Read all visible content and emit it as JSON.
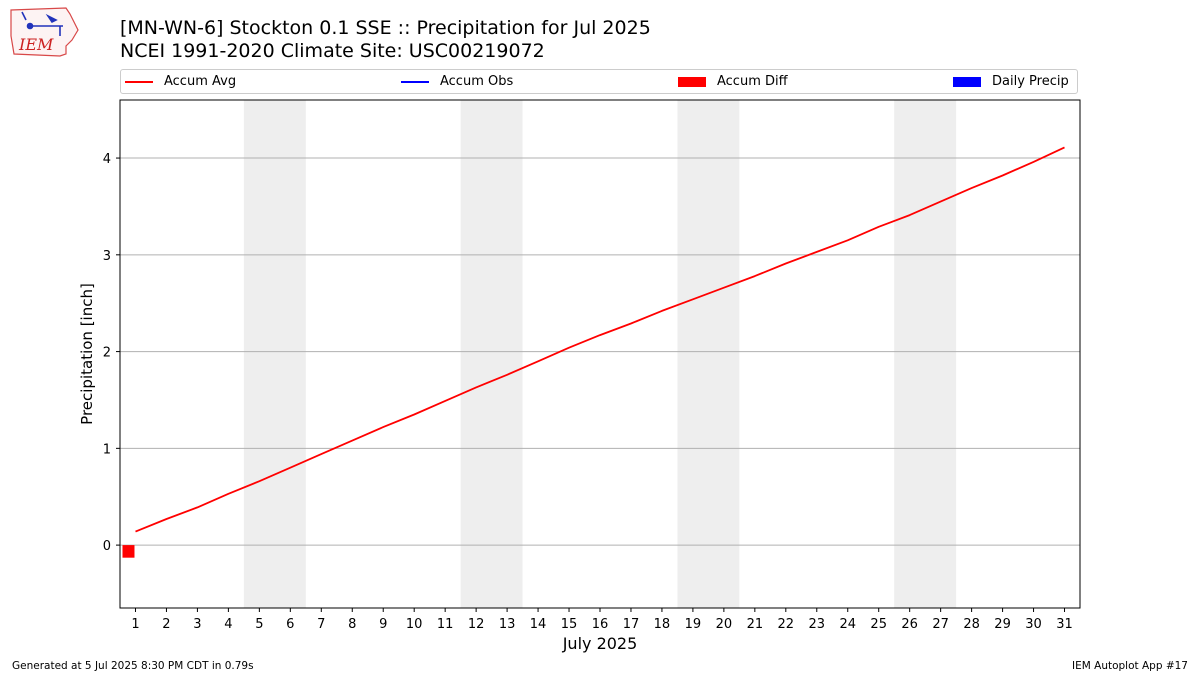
{
  "header": {
    "title_line1": "[MN-WN-6] Stockton 0.1 SSE :: Precipitation for Jul 2025",
    "title_line2": "NCEI 1991-2020 Climate Site: USC00219072",
    "logo_text": "IEM"
  },
  "footer": {
    "generated": "Generated at 5 Jul 2025 8:30 PM CDT in 0.79s",
    "app": "IEM Autoplot App #17"
  },
  "colors": {
    "accum_avg": "#ff0000",
    "accum_obs": "#0000ff",
    "accum_diff": "#ff0000",
    "daily_precip": "#0000ff",
    "weekend_band": "#eeeeee",
    "grid": "#b0b0b0"
  },
  "chart_data": {
    "type": "line",
    "xlabel": "July 2025",
    "ylabel": "Precipitation [inch]",
    "xlim": [
      0.5,
      31.5
    ],
    "ylim": [
      -0.65,
      4.6
    ],
    "yticks": [
      0,
      1,
      2,
      3,
      4
    ],
    "x_tick_labels": [
      "1",
      "2",
      "3",
      "4",
      "5",
      "6",
      "7",
      "8",
      "9",
      "10",
      "11",
      "12",
      "13",
      "14",
      "15",
      "16",
      "17",
      "18",
      "19",
      "20",
      "21",
      "22",
      "23",
      "24",
      "25",
      "26",
      "27",
      "28",
      "29",
      "30",
      "31"
    ],
    "grid": "y-major",
    "legend": {
      "placement": "top",
      "entries": [
        "Accum Avg",
        "Accum Obs",
        "Accum Diff",
        "Daily Precip"
      ]
    },
    "weekend_ranges": [
      [
        4.5,
        6.5
      ],
      [
        11.5,
        13.5
      ],
      [
        18.5,
        20.5
      ],
      [
        25.5,
        27.5
      ]
    ],
    "series": [
      {
        "name": "Accum Avg",
        "type": "line",
        "x": [
          1,
          2,
          3,
          4,
          5,
          6,
          7,
          8,
          9,
          10,
          11,
          12,
          13,
          14,
          15,
          16,
          17,
          18,
          19,
          20,
          21,
          22,
          23,
          24,
          25,
          26,
          27,
          28,
          29,
          30,
          31
        ],
        "values": [
          0.14,
          0.27,
          0.39,
          0.53,
          0.66,
          0.8,
          0.94,
          1.08,
          1.22,
          1.35,
          1.49,
          1.63,
          1.76,
          1.9,
          2.04,
          2.17,
          2.29,
          2.42,
          2.54,
          2.66,
          2.78,
          2.91,
          3.03,
          3.15,
          3.29,
          3.41,
          3.55,
          3.69,
          3.82,
          3.96,
          4.11
        ]
      },
      {
        "name": "Accum Diff",
        "type": "bar",
        "x": [
          1
        ],
        "values": [
          -0.13
        ]
      }
    ]
  }
}
